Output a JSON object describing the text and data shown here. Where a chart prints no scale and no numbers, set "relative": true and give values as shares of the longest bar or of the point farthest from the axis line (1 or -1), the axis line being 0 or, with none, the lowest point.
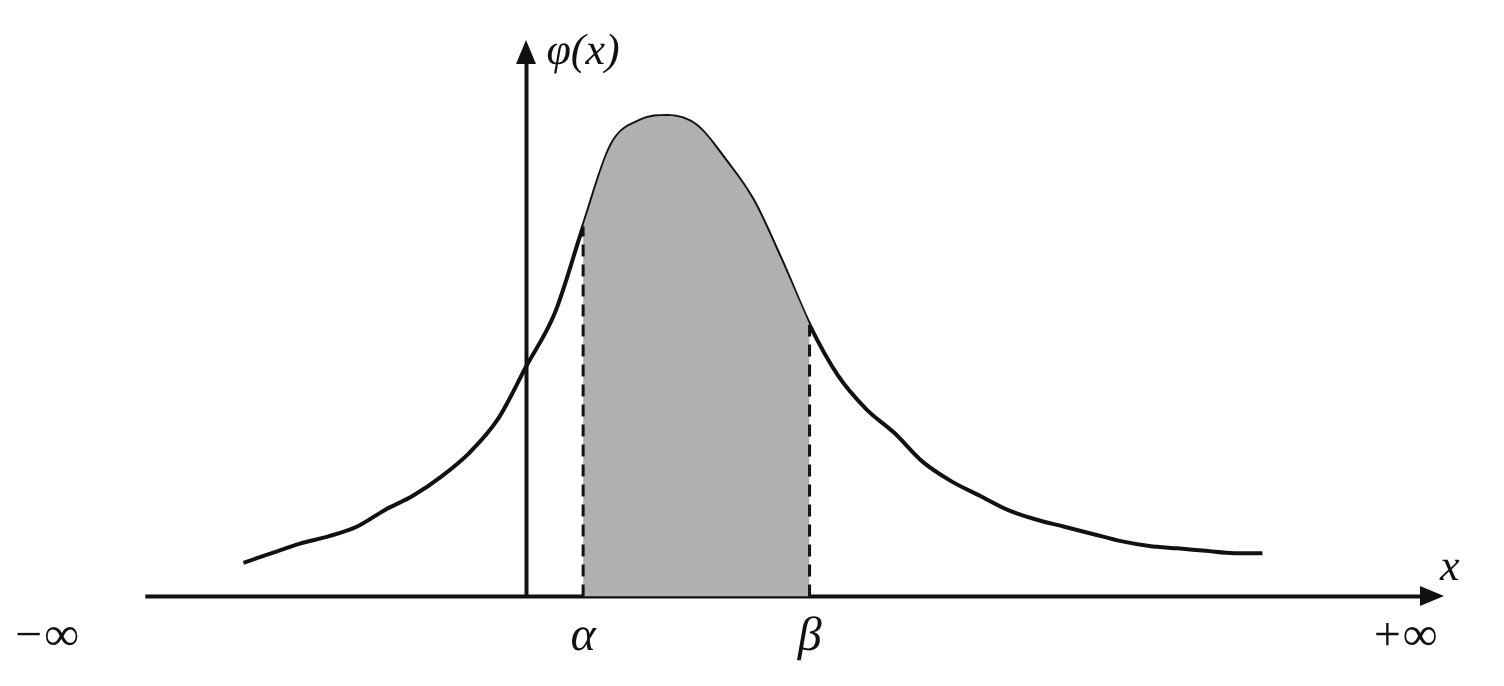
{
  "chart_data": {
    "type": "line",
    "relative": true,
    "xlabel": "x",
    "ylabel": "φ(x)",
    "categories": [
      "−∞",
      null,
      null,
      null,
      null,
      null,
      null,
      null,
      null,
      null,
      null,
      null,
      null,
      null,
      null,
      null,
      null,
      null,
      null,
      "α",
      null,
      null,
      null,
      null,
      null,
      null,
      null,
      "β",
      null,
      null,
      null,
      null,
      null,
      null,
      null,
      null,
      null,
      null,
      null,
      null,
      null,
      null,
      null,
      null,
      null,
      null,
      null,
      null,
      "+∞"
    ],
    "series": [
      {
        "type": "area",
        "color": "#b0b0b0",
        "values": [
          null,
          null,
          null,
          null,
          null,
          null,
          null,
          null,
          null,
          null,
          null,
          null,
          null,
          null,
          null,
          null,
          null,
          null,
          null,
          0.77,
          0.94,
          0.99,
          1,
          0.98,
          0.91,
          0.825,
          0.7,
          0.565,
          null,
          null,
          null,
          null,
          null,
          null,
          null,
          null,
          null,
          null,
          null,
          null,
          null,
          null,
          null,
          null,
          null,
          null,
          null,
          null,
          null
        ]
      },
      {
        "color": "#111111",
        "values": [
          null,
          null,
          null,
          null,
          null,
          null,
          null,
          0.07,
          0.09,
          0.11,
          0.125,
          0.145,
          0.18,
          0.21,
          0.25,
          0.3,
          0.37,
          0.48,
          0.59,
          0.77,
          0.94,
          0.99,
          1,
          0.98,
          0.91,
          0.825,
          0.7,
          0.565,
          0.46,
          0.39,
          0.34,
          0.28,
          0.24,
          0.21,
          0.18,
          0.16,
          0.145,
          0.13,
          0.115,
          0.105,
          0.1,
          0.095,
          0.09,
          0.09,
          null,
          null,
          null,
          null,
          null
        ]
      }
    ],
    "marker": "none",
    "grid": false,
    "legend": false
  }
}
